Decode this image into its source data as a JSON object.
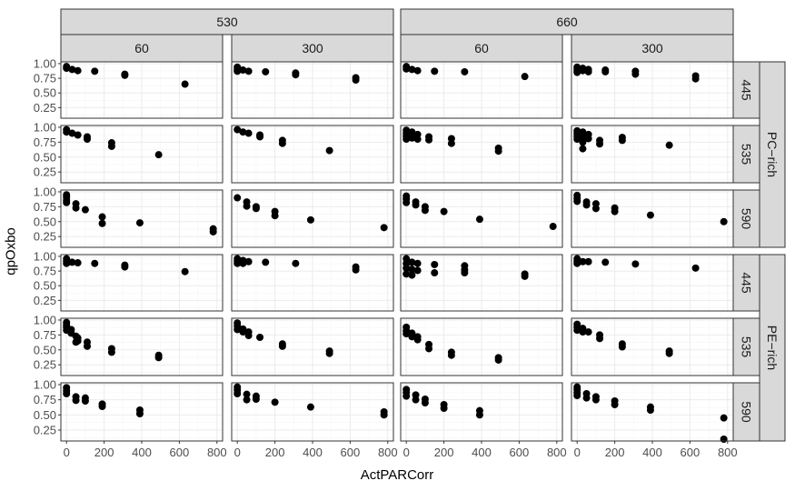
{
  "chart_data": {
    "type": "scatter",
    "xlabel": "ActPARCorr",
    "ylabel": "qpOxbo",
    "xlim": [
      -30,
      830
    ],
    "ylim": [
      0.07,
      1.03
    ],
    "x_ticks": [
      "0",
      "200",
      "400",
      "600",
      "800"
    ],
    "x_tick_values": [
      0,
      200,
      400,
      600,
      800
    ],
    "y_ticks": [
      "0.25",
      "0.50",
      "0.75",
      "1.00"
    ],
    "y_tick_values": [
      0.25,
      0.5,
      0.75,
      1.0
    ],
    "grid": true,
    "colors": {
      "point": "#000000",
      "strip": "#d9d9d9",
      "panel_border": "#333333",
      "grid_major": "#ebebeb",
      "grid_minor": "#f5f5f5"
    },
    "col_top_strips": [
      "530",
      "660"
    ],
    "col_strips": [
      "60",
      "300",
      "60",
      "300"
    ],
    "row_strips": [
      "445",
      "535",
      "590",
      "445",
      "535",
      "590"
    ],
    "row_group_strips": [
      "PC−rich",
      "PE−rich"
    ],
    "panels": [
      {
        "row": 0,
        "col": 0,
        "points": [
          [
            0,
            0.95
          ],
          [
            0,
            0.92
          ],
          [
            30,
            0.9
          ],
          [
            60,
            0.88
          ],
          [
            150,
            0.87
          ],
          [
            310,
            0.82
          ],
          [
            310,
            0.8
          ],
          [
            630,
            0.65
          ]
        ]
      },
      {
        "row": 0,
        "col": 1,
        "points": [
          [
            0,
            0.94
          ],
          [
            0,
            0.9
          ],
          [
            0,
            0.87
          ],
          [
            30,
            0.89
          ],
          [
            60,
            0.87
          ],
          [
            150,
            0.86
          ],
          [
            310,
            0.84
          ],
          [
            310,
            0.81
          ],
          [
            630,
            0.76
          ],
          [
            630,
            0.72
          ]
        ]
      },
      {
        "row": 0,
        "col": 2,
        "points": [
          [
            0,
            0.95
          ],
          [
            0,
            0.91
          ],
          [
            30,
            0.9
          ],
          [
            60,
            0.88
          ],
          [
            150,
            0.87
          ],
          [
            310,
            0.86
          ],
          [
            630,
            0.78
          ]
        ]
      },
      {
        "row": 0,
        "col": 3,
        "points": [
          [
            0,
            0.94
          ],
          [
            0,
            0.91
          ],
          [
            0,
            0.88
          ],
          [
            0,
            0.85
          ],
          [
            30,
            0.92
          ],
          [
            30,
            0.88
          ],
          [
            60,
            0.9
          ],
          [
            60,
            0.86
          ],
          [
            150,
            0.89
          ],
          [
            150,
            0.86
          ],
          [
            310,
            0.87
          ],
          [
            310,
            0.82
          ],
          [
            630,
            0.79
          ],
          [
            630,
            0.74
          ]
        ]
      },
      {
        "row": 1,
        "col": 0,
        "points": [
          [
            0,
            0.96
          ],
          [
            0,
            0.92
          ],
          [
            30,
            0.9
          ],
          [
            60,
            0.87
          ],
          [
            110,
            0.84
          ],
          [
            110,
            0.8
          ],
          [
            240,
            0.74
          ],
          [
            240,
            0.68
          ],
          [
            490,
            0.54
          ]
        ]
      },
      {
        "row": 1,
        "col": 1,
        "points": [
          [
            0,
            0.96
          ],
          [
            30,
            0.92
          ],
          [
            60,
            0.9
          ],
          [
            120,
            0.87
          ],
          [
            120,
            0.84
          ],
          [
            240,
            0.78
          ],
          [
            240,
            0.73
          ],
          [
            490,
            0.61
          ]
        ]
      },
      {
        "row": 1,
        "col": 2,
        "points": [
          [
            0,
            0.95
          ],
          [
            0,
            0.9
          ],
          [
            0,
            0.85
          ],
          [
            0,
            0.8
          ],
          [
            30,
            0.92
          ],
          [
            30,
            0.82
          ],
          [
            60,
            0.88
          ],
          [
            60,
            0.8
          ],
          [
            120,
            0.84
          ],
          [
            120,
            0.79
          ],
          [
            240,
            0.81
          ],
          [
            240,
            0.73
          ],
          [
            490,
            0.65
          ],
          [
            490,
            0.6
          ]
        ]
      },
      {
        "row": 1,
        "col": 3,
        "points": [
          [
            0,
            0.94
          ],
          [
            0,
            0.9
          ],
          [
            0,
            0.85
          ],
          [
            0,
            0.8
          ],
          [
            30,
            0.92
          ],
          [
            30,
            0.84
          ],
          [
            30,
            0.75
          ],
          [
            30,
            0.64
          ],
          [
            60,
            0.88
          ],
          [
            60,
            0.81
          ],
          [
            120,
            0.78
          ],
          [
            120,
            0.72
          ],
          [
            240,
            0.83
          ],
          [
            240,
            0.78
          ],
          [
            490,
            0.7
          ]
        ]
      },
      {
        "row": 2,
        "col": 0,
        "points": [
          [
            0,
            0.95
          ],
          [
            0,
            0.91
          ],
          [
            0,
            0.86
          ],
          [
            0,
            0.82
          ],
          [
            50,
            0.8
          ],
          [
            50,
            0.73
          ],
          [
            100,
            0.7
          ],
          [
            190,
            0.58
          ],
          [
            190,
            0.47
          ],
          [
            390,
            0.48
          ],
          [
            780,
            0.38
          ],
          [
            780,
            0.33
          ]
        ]
      },
      {
        "row": 2,
        "col": 1,
        "points": [
          [
            0,
            0.9
          ],
          [
            50,
            0.83
          ],
          [
            50,
            0.76
          ],
          [
            100,
            0.75
          ],
          [
            100,
            0.72
          ],
          [
            200,
            0.67
          ],
          [
            200,
            0.6
          ],
          [
            390,
            0.53
          ],
          [
            780,
            0.4
          ]
        ]
      },
      {
        "row": 2,
        "col": 2,
        "points": [
          [
            0,
            0.93
          ],
          [
            0,
            0.88
          ],
          [
            0,
            0.82
          ],
          [
            50,
            0.83
          ],
          [
            50,
            0.78
          ],
          [
            100,
            0.75
          ],
          [
            100,
            0.69
          ],
          [
            200,
            0.67
          ],
          [
            390,
            0.54
          ],
          [
            780,
            0.42
          ]
        ]
      },
      {
        "row": 2,
        "col": 3,
        "points": [
          [
            0,
            0.94
          ],
          [
            0,
            0.89
          ],
          [
            0,
            0.84
          ],
          [
            50,
            0.83
          ],
          [
            50,
            0.78
          ],
          [
            100,
            0.8
          ],
          [
            100,
            0.72
          ],
          [
            200,
            0.73
          ],
          [
            200,
            0.67
          ],
          [
            390,
            0.61
          ],
          [
            780,
            0.5
          ]
        ]
      },
      {
        "row": 3,
        "col": 0,
        "points": [
          [
            0,
            0.96
          ],
          [
            0,
            0.92
          ],
          [
            0,
            0.88
          ],
          [
            30,
            0.9
          ],
          [
            60,
            0.89
          ],
          [
            150,
            0.88
          ],
          [
            310,
            0.85
          ],
          [
            310,
            0.82
          ],
          [
            630,
            0.74
          ]
        ]
      },
      {
        "row": 3,
        "col": 1,
        "points": [
          [
            0,
            0.96
          ],
          [
            0,
            0.92
          ],
          [
            0,
            0.88
          ],
          [
            30,
            0.93
          ],
          [
            30,
            0.88
          ],
          [
            60,
            0.91
          ],
          [
            150,
            0.9
          ],
          [
            310,
            0.88
          ],
          [
            630,
            0.82
          ],
          [
            630,
            0.77
          ]
        ]
      },
      {
        "row": 3,
        "col": 2,
        "points": [
          [
            0,
            0.96
          ],
          [
            0,
            0.88
          ],
          [
            0,
            0.8
          ],
          [
            0,
            0.7
          ],
          [
            30,
            0.9
          ],
          [
            30,
            0.78
          ],
          [
            30,
            0.68
          ],
          [
            60,
            0.88
          ],
          [
            60,
            0.76
          ],
          [
            150,
            0.86
          ],
          [
            150,
            0.72
          ],
          [
            310,
            0.84
          ],
          [
            310,
            0.77
          ],
          [
            310,
            0.72
          ],
          [
            630,
            0.7
          ],
          [
            630,
            0.66
          ]
        ]
      },
      {
        "row": 3,
        "col": 3,
        "points": [
          [
            0,
            0.96
          ],
          [
            0,
            0.92
          ],
          [
            0,
            0.88
          ],
          [
            30,
            0.91
          ],
          [
            60,
            0.91
          ],
          [
            150,
            0.9
          ],
          [
            310,
            0.87
          ],
          [
            630,
            0.8
          ]
        ]
      },
      {
        "row": 4,
        "col": 0,
        "points": [
          [
            0,
            0.96
          ],
          [
            0,
            0.92
          ],
          [
            0,
            0.88
          ],
          [
            0,
            0.83
          ],
          [
            25,
            0.84
          ],
          [
            25,
            0.78
          ],
          [
            50,
            0.73
          ],
          [
            50,
            0.63
          ],
          [
            60,
            0.7
          ],
          [
            60,
            0.65
          ],
          [
            110,
            0.63
          ],
          [
            110,
            0.56
          ],
          [
            240,
            0.52
          ],
          [
            240,
            0.46
          ],
          [
            490,
            0.41
          ],
          [
            490,
            0.37
          ]
        ]
      },
      {
        "row": 4,
        "col": 1,
        "points": [
          [
            0,
            0.95
          ],
          [
            0,
            0.9
          ],
          [
            0,
            0.84
          ],
          [
            30,
            0.85
          ],
          [
            30,
            0.8
          ],
          [
            60,
            0.8
          ],
          [
            60,
            0.74
          ],
          [
            120,
            0.71
          ],
          [
            240,
            0.6
          ],
          [
            240,
            0.56
          ],
          [
            490,
            0.48
          ],
          [
            490,
            0.44
          ]
        ]
      },
      {
        "row": 4,
        "col": 2,
        "points": [
          [
            0,
            0.88
          ],
          [
            0,
            0.82
          ],
          [
            0,
            0.77
          ],
          [
            30,
            0.78
          ],
          [
            30,
            0.72
          ],
          [
            60,
            0.72
          ],
          [
            60,
            0.67
          ],
          [
            120,
            0.59
          ],
          [
            120,
            0.52
          ],
          [
            240,
            0.46
          ],
          [
            240,
            0.41
          ],
          [
            490,
            0.37
          ],
          [
            490,
            0.33
          ]
        ]
      },
      {
        "row": 4,
        "col": 3,
        "points": [
          [
            0,
            0.93
          ],
          [
            0,
            0.88
          ],
          [
            0,
            0.83
          ],
          [
            30,
            0.86
          ],
          [
            30,
            0.8
          ],
          [
            60,
            0.8
          ],
          [
            120,
            0.75
          ],
          [
            120,
            0.69
          ],
          [
            240,
            0.6
          ],
          [
            240,
            0.55
          ],
          [
            490,
            0.48
          ],
          [
            490,
            0.44
          ]
        ]
      },
      {
        "row": 5,
        "col": 0,
        "points": [
          [
            0,
            0.95
          ],
          [
            0,
            0.9
          ],
          [
            0,
            0.85
          ],
          [
            50,
            0.8
          ],
          [
            50,
            0.74
          ],
          [
            100,
            0.78
          ],
          [
            100,
            0.73
          ],
          [
            190,
            0.68
          ],
          [
            190,
            0.64
          ],
          [
            390,
            0.58
          ],
          [
            390,
            0.52
          ]
        ]
      },
      {
        "row": 5,
        "col": 1,
        "points": [
          [
            0,
            0.96
          ],
          [
            0,
            0.91
          ],
          [
            0,
            0.85
          ],
          [
            50,
            0.84
          ],
          [
            50,
            0.75
          ],
          [
            100,
            0.81
          ],
          [
            100,
            0.76
          ],
          [
            200,
            0.71
          ],
          [
            390,
            0.63
          ],
          [
            780,
            0.55
          ],
          [
            780,
            0.5
          ]
        ]
      },
      {
        "row": 5,
        "col": 2,
        "points": [
          [
            0,
            0.92
          ],
          [
            0,
            0.87
          ],
          [
            0,
            0.81
          ],
          [
            50,
            0.83
          ],
          [
            50,
            0.75
          ],
          [
            100,
            0.76
          ],
          [
            100,
            0.7
          ],
          [
            200,
            0.67
          ],
          [
            200,
            0.61
          ],
          [
            390,
            0.57
          ],
          [
            390,
            0.5
          ]
        ]
      },
      {
        "row": 5,
        "col": 3,
        "points": [
          [
            0,
            0.96
          ],
          [
            0,
            0.92
          ],
          [
            0,
            0.87
          ],
          [
            0,
            0.82
          ],
          [
            50,
            0.85
          ],
          [
            50,
            0.78
          ],
          [
            100,
            0.8
          ],
          [
            100,
            0.75
          ],
          [
            200,
            0.73
          ],
          [
            200,
            0.67
          ],
          [
            390,
            0.63
          ],
          [
            390,
            0.58
          ],
          [
            780,
            0.45
          ],
          [
            780,
            0.1
          ]
        ]
      }
    ]
  }
}
